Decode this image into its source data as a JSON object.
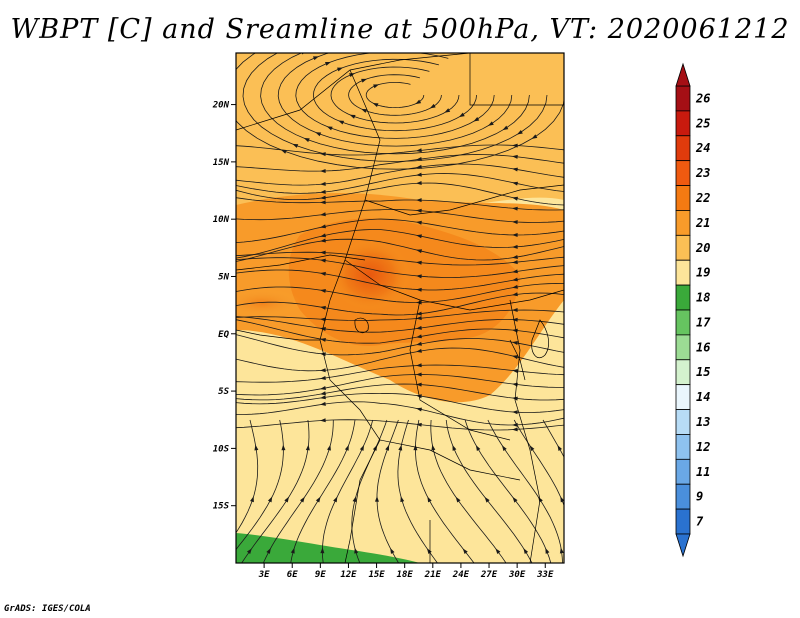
{
  "title": "WBPT [C] and Sreamline at 500hPa, VT: 2020061212",
  "credit": "GrADS: IGES/COLA",
  "map": {
    "lat_ticks": [
      "20N",
      "15N",
      "10N",
      "5N",
      "EQ",
      "5S",
      "10S",
      "15S"
    ],
    "lon_ticks": [
      "3E",
      "6E",
      "9E",
      "12E",
      "15E",
      "18E",
      "21E",
      "24E",
      "27E",
      "30E",
      "33E"
    ],
    "lon_range_deg": [
      0,
      35
    ],
    "lat_range_deg": [
      -20,
      24.5
    ],
    "variable": "Wet-bulb potential temperature (C)",
    "streamlines_level": "500hPa"
  },
  "colorbar": {
    "labels": [
      "26",
      "25",
      "24",
      "23",
      "22",
      "21",
      "20",
      "19",
      "18",
      "17",
      "16",
      "15",
      "14",
      "13",
      "12",
      "11",
      "9",
      "7"
    ],
    "colors": [
      "#a50f15",
      "#c81a0e",
      "#e03b0c",
      "#f05a10",
      "#f57a12",
      "#f89b2a",
      "#fbbf55",
      "#fde59a",
      "#3aa93a",
      "#66c460",
      "#9cdc94",
      "#d4f2ce",
      "#eaf6fd",
      "#b7dcf6",
      "#8ec2ef",
      "#6aa8e6",
      "#4a8fdc",
      "#2a72d0"
    ]
  }
}
